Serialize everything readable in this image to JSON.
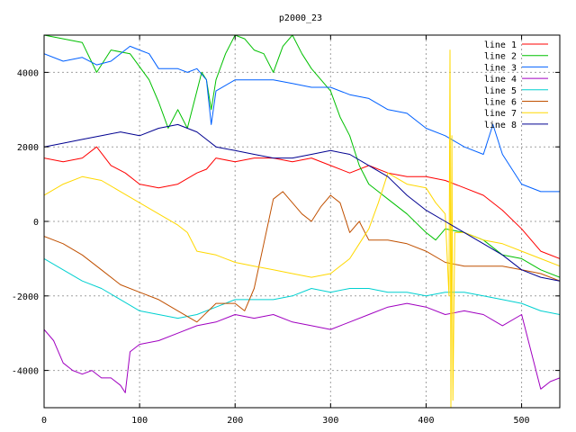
{
  "chart_data": {
    "type": "line",
    "title": "p2000_23",
    "xlabel": "",
    "ylabel": "",
    "xlim": [
      0,
      540
    ],
    "ylim": [
      -5000,
      5000
    ],
    "xticks": [
      0,
      100,
      200,
      300,
      400,
      500
    ],
    "yticks": [
      -4000,
      -2000,
      0,
      2000,
      4000
    ],
    "grid": true,
    "legend_position": "top-right",
    "series": [
      {
        "name": "line 1",
        "color": "#ff0000",
        "x": [
          0,
          20,
          40,
          55,
          70,
          85,
          100,
          120,
          140,
          160,
          170,
          180,
          200,
          220,
          240,
          260,
          280,
          300,
          320,
          340,
          360,
          380,
          400,
          420,
          440,
          460,
          480,
          500,
          520,
          540
        ],
        "y": [
          1700,
          1600,
          1700,
          2000,
          1500,
          1300,
          1000,
          900,
          1000,
          1300,
          1400,
          1700,
          1600,
          1700,
          1700,
          1600,
          1700,
          1500,
          1300,
          1500,
          1300,
          1200,
          1200,
          1100,
          900,
          700,
          300,
          -200,
          -800,
          -1000
        ]
      },
      {
        "name": "line 2",
        "color": "#00c000",
        "x": [
          0,
          20,
          40,
          55,
          70,
          90,
          110,
          120,
          130,
          140,
          150,
          160,
          165,
          170,
          175,
          180,
          190,
          200,
          210,
          220,
          230,
          240,
          250,
          260,
          270,
          280,
          290,
          300,
          310,
          320,
          330,
          340,
          350,
          360,
          380,
          400,
          410,
          420,
          440,
          460,
          480,
          500,
          520,
          540
        ],
        "y": [
          5000,
          4900,
          4800,
          4000,
          4600,
          4500,
          3800,
          3200,
          2500,
          3000,
          2500,
          3500,
          4000,
          3800,
          3000,
          3800,
          4500,
          5000,
          4900,
          4600,
          4500,
          4000,
          4700,
          5000,
          4500,
          4100,
          3800,
          3500,
          2800,
          2300,
          1500,
          1000,
          800,
          600,
          200,
          -300,
          -500,
          -200,
          -300,
          -500,
          -900,
          -1000,
          -1300,
          -1500
        ]
      },
      {
        "name": "line 3",
        "color": "#0060ff",
        "x": [
          0,
          20,
          40,
          55,
          70,
          90,
          100,
          110,
          120,
          140,
          150,
          160,
          170,
          175,
          180,
          200,
          220,
          240,
          260,
          280,
          300,
          320,
          340,
          360,
          380,
          400,
          420,
          440,
          460,
          470,
          480,
          500,
          520,
          540
        ],
        "y": [
          4500,
          4300,
          4400,
          4200,
          4300,
          4700,
          4600,
          4500,
          4100,
          4100,
          4000,
          4100,
          3800,
          2600,
          3500,
          3800,
          3800,
          3800,
          3700,
          3600,
          3600,
          3400,
          3300,
          3000,
          2900,
          2500,
          2300,
          2000,
          1800,
          2600,
          1800,
          1000,
          800,
          800
        ]
      },
      {
        "name": "line 4",
        "color": "#a000c0",
        "x": [
          0,
          10,
          20,
          30,
          40,
          50,
          60,
          70,
          80,
          85,
          90,
          100,
          120,
          140,
          160,
          180,
          200,
          220,
          240,
          260,
          280,
          300,
          320,
          340,
          360,
          380,
          400,
          420,
          440,
          460,
          480,
          500,
          520,
          530,
          540
        ],
        "y": [
          -2900,
          -3200,
          -3800,
          -4000,
          -4100,
          -4000,
          -4200,
          -4200,
          -4400,
          -4600,
          -3500,
          -3300,
          -3200,
          -3000,
          -2800,
          -2700,
          -2500,
          -2600,
          -2500,
          -2700,
          -2800,
          -2900,
          -2700,
          -2500,
          -2300,
          -2200,
          -2300,
          -2500,
          -2400,
          -2500,
          -2800,
          -2500,
          -4500,
          -4300,
          -4200
        ]
      },
      {
        "name": "line 5",
        "color": "#00d0d0",
        "x": [
          0,
          20,
          40,
          60,
          80,
          100,
          120,
          140,
          160,
          180,
          200,
          220,
          240,
          260,
          280,
          300,
          320,
          340,
          360,
          380,
          400,
          420,
          440,
          460,
          480,
          500,
          520,
          540
        ],
        "y": [
          -1000,
          -1300,
          -1600,
          -1800,
          -2100,
          -2400,
          -2500,
          -2600,
          -2500,
          -2300,
          -2100,
          -2100,
          -2100,
          -2000,
          -1800,
          -1900,
          -1800,
          -1800,
          -1900,
          -1900,
          -2000,
          -1900,
          -1900,
          -2000,
          -2100,
          -2200,
          -2400,
          -2500
        ]
      },
      {
        "name": "line 6",
        "color": "#c05000",
        "x": [
          0,
          20,
          40,
          60,
          80,
          100,
          120,
          140,
          160,
          180,
          200,
          210,
          220,
          230,
          240,
          250,
          260,
          270,
          280,
          290,
          300,
          310,
          320,
          330,
          340,
          360,
          380,
          400,
          420,
          440,
          460,
          480,
          500,
          520,
          540
        ],
        "y": [
          -400,
          -600,
          -900,
          -1300,
          -1700,
          -1900,
          -2100,
          -2400,
          -2700,
          -2200,
          -2200,
          -2400,
          -1800,
          -600,
          600,
          800,
          500,
          200,
          0,
          400,
          700,
          500,
          -300,
          0,
          -500,
          -500,
          -600,
          -800,
          -1100,
          -1200,
          -1200,
          -1200,
          -1300,
          -1400,
          -1600
        ]
      },
      {
        "name": "line 7",
        "color": "#ffd800",
        "x": [
          0,
          20,
          40,
          60,
          80,
          100,
          120,
          140,
          150,
          160,
          180,
          200,
          220,
          240,
          260,
          280,
          300,
          320,
          330,
          340,
          350,
          360,
          380,
          400,
          410,
          420,
          424,
          425,
          426,
          427,
          428,
          430,
          440,
          460,
          480,
          500,
          520,
          540
        ],
        "y": [
          700,
          1000,
          1200,
          1100,
          800,
          500,
          200,
          -100,
          -300,
          -800,
          -900,
          -1100,
          -1200,
          -1300,
          -1400,
          -1500,
          -1400,
          -1000,
          -600,
          -200,
          500,
          1300,
          1000,
          900,
          500,
          200,
          -2000,
          4600,
          -5000,
          2300,
          -4800,
          -300,
          -300,
          -500,
          -600,
          -800,
          -1000,
          -1200
        ]
      },
      {
        "name": "line 8",
        "color": "#000090",
        "x": [
          0,
          20,
          40,
          60,
          80,
          100,
          120,
          140,
          160,
          170,
          180,
          200,
          220,
          240,
          260,
          280,
          300,
          320,
          340,
          360,
          380,
          400,
          420,
          440,
          460,
          480,
          500,
          520,
          540
        ],
        "y": [
          2000,
          2100,
          2200,
          2300,
          2400,
          2300,
          2500,
          2600,
          2400,
          2200,
          2000,
          1900,
          1800,
          1700,
          1700,
          1800,
          1900,
          1800,
          1500,
          1200,
          700,
          300,
          0,
          -300,
          -600,
          -900,
          -1300,
          -1500,
          -1600
        ]
      }
    ]
  }
}
